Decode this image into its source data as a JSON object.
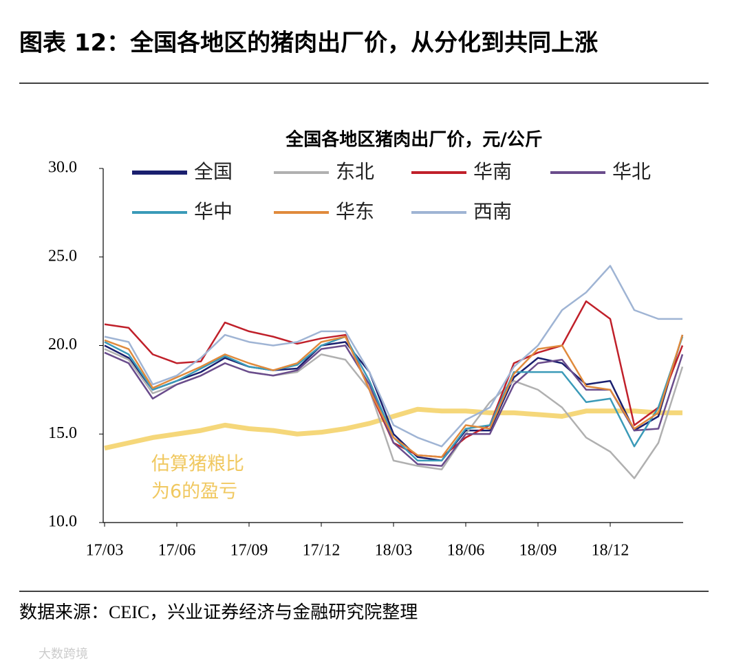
{
  "title": "图表 12：全国各地区的猪肉出厂价，从分化到共同上涨",
  "source": "数据来源：CEIC，兴业证券经济与金融研究院整理",
  "watermark": "大数跨境",
  "chart_data": {
    "type": "line",
    "title": "全国各地区猪肉出厂价，元/公斤",
    "categories": [
      "17/03",
      null,
      null,
      "17/06",
      null,
      null,
      "17/09",
      null,
      null,
      "17/12",
      null,
      null,
      "18/03",
      null,
      null,
      "18/06",
      null,
      null,
      "18/09",
      null,
      null,
      "18/12",
      null,
      null,
      null
    ],
    "ylim": [
      10,
      30
    ],
    "yticks": [
      {
        "value": 10,
        "label": "10.0"
      },
      {
        "value": 15,
        "label": "15.0"
      },
      {
        "value": 20,
        "label": "20.0"
      },
      {
        "value": 25,
        "label": "25.0"
      },
      {
        "value": 30,
        "label": "30.0"
      }
    ],
    "series": [
      {
        "name": "全国",
        "color": "#1a1f6e",
        "values": [
          20.0,
          19.3,
          17.5,
          18.0,
          18.5,
          19.3,
          18.8,
          18.6,
          18.7,
          20.0,
          20.2,
          18.5,
          15.0,
          13.7,
          13.5,
          15.2,
          15.2,
          18.2,
          19.3,
          19.0,
          17.8,
          18.0,
          15.2,
          16.0,
          20.6
        ]
      },
      {
        "name": "东北",
        "color": "#b0b0b0",
        "values": [
          19.8,
          19.2,
          17.3,
          17.8,
          18.3,
          19.0,
          18.5,
          18.3,
          18.5,
          19.5,
          19.2,
          17.5,
          13.5,
          13.2,
          13.0,
          15.0,
          16.8,
          18.0,
          17.5,
          16.5,
          14.8,
          14.0,
          12.5,
          14.5,
          18.8
        ]
      },
      {
        "name": "华南",
        "color": "#c0202a",
        "values": [
          21.2,
          21.0,
          19.5,
          19.0,
          19.1,
          21.3,
          20.8,
          20.5,
          20.1,
          20.4,
          20.6,
          17.5,
          14.5,
          13.8,
          13.7,
          14.8,
          15.5,
          19.0,
          19.6,
          20.0,
          22.5,
          21.5,
          15.5,
          16.5,
          20.0
        ]
      },
      {
        "name": "华北",
        "color": "#6a4c8c",
        "values": [
          19.6,
          19.0,
          17.0,
          17.8,
          18.3,
          19.0,
          18.5,
          18.3,
          18.6,
          19.8,
          20.0,
          17.8,
          14.5,
          13.3,
          13.2,
          15.0,
          15.0,
          17.8,
          19.0,
          19.2,
          17.5,
          17.5,
          15.2,
          15.3,
          19.5
        ]
      },
      {
        "name": "华中",
        "color": "#3a9ab8",
        "values": [
          20.2,
          19.5,
          17.5,
          18.0,
          18.7,
          19.4,
          18.8,
          18.6,
          18.9,
          20.0,
          20.5,
          18.0,
          14.8,
          13.5,
          13.5,
          15.3,
          15.5,
          18.5,
          18.5,
          18.5,
          16.8,
          17.0,
          14.3,
          16.5,
          20.5
        ]
      },
      {
        "name": "华东",
        "color": "#e08a3c",
        "values": [
          20.3,
          19.8,
          17.6,
          18.2,
          18.8,
          19.5,
          19.0,
          18.6,
          19.0,
          20.2,
          20.5,
          17.5,
          14.8,
          13.8,
          13.7,
          15.5,
          15.3,
          18.4,
          19.8,
          20.0,
          17.7,
          17.5,
          15.3,
          16.2,
          20.6
        ]
      },
      {
        "name": "西南",
        "color": "#9fb4d4",
        "values": [
          20.5,
          20.2,
          17.8,
          18.3,
          19.3,
          20.6,
          20.2,
          20.0,
          20.2,
          20.8,
          20.8,
          18.5,
          15.5,
          14.8,
          14.3,
          15.8,
          16.5,
          18.8,
          20.0,
          22.0,
          23.0,
          24.5,
          22.0,
          21.5,
          21.5
        ]
      },
      {
        "color": "#f5d77a",
        "values": [
          14.2,
          14.5,
          14.8,
          15.0,
          15.2,
          15.5,
          15.3,
          15.2,
          15.0,
          15.1,
          15.3,
          15.6,
          16.0,
          16.4,
          16.3,
          16.3,
          16.2,
          16.2,
          16.1,
          16.0,
          16.3,
          16.3,
          16.3,
          16.2,
          16.2
        ]
      }
    ],
    "annotation": [
      "估算猪粮比",
      "为6的盈亏"
    ]
  }
}
